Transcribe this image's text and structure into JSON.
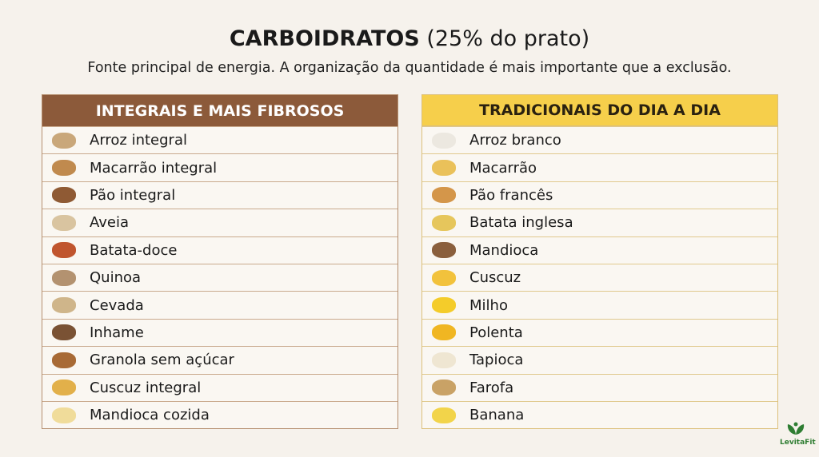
{
  "header": {
    "title_bold": "CARBOIDRATOS",
    "title_rest": " (25% do prato)",
    "subtitle": "Fonte principal de energia. A organização da quantidade é mais importante que a exclusão."
  },
  "left": {
    "heading": "INTEGRAIS E MAIS FIBROSOS",
    "color": "#8c5a3a",
    "items": [
      {
        "label": "Arroz integral",
        "icon": "brown-rice-icon",
        "color": "#c9a77a"
      },
      {
        "label": "Macarrão integral",
        "icon": "whole-pasta-icon",
        "color": "#c08a4e"
      },
      {
        "label": "Pão integral",
        "icon": "whole-bread-icon",
        "color": "#8f5a34"
      },
      {
        "label": "Aveia",
        "icon": "oats-bowl-icon",
        "color": "#d9c4a0"
      },
      {
        "label": "Batata-doce",
        "icon": "sweet-potato-icon",
        "color": "#c0552e"
      },
      {
        "label": "Quinoa",
        "icon": "quinoa-icon",
        "color": "#b39270"
      },
      {
        "label": "Cevada",
        "icon": "barley-icon",
        "color": "#cfb58a"
      },
      {
        "label": "Inhame",
        "icon": "yam-icon",
        "color": "#7a5234"
      },
      {
        "label": "Granola sem açúcar",
        "icon": "granola-icon",
        "color": "#a86a35"
      },
      {
        "label": "Cuscuz integral",
        "icon": "couscous-icon",
        "color": "#e2b04a"
      },
      {
        "label": "Mandioca cozida",
        "icon": "cassava-icon",
        "color": "#f0dc9a"
      }
    ]
  },
  "right": {
    "heading": "TRADICIONAIS DO DIA A DIA",
    "color": "#f6cf4b",
    "items": [
      {
        "label": "Arroz branco",
        "icon": "white-rice-icon",
        "color": "#ece8e0"
      },
      {
        "label": "Macarrão",
        "icon": "pasta-icon",
        "color": "#eac15a"
      },
      {
        "label": "Pão francês",
        "icon": "french-bread-icon",
        "color": "#d4964a"
      },
      {
        "label": "Batata inglesa",
        "icon": "potato-icon",
        "color": "#e6c65c"
      },
      {
        "label": "Mandioca",
        "icon": "cassava-root-icon",
        "color": "#8a5f3d"
      },
      {
        "label": "Cuscuz",
        "icon": "cuscuz-icon",
        "color": "#f2c23c"
      },
      {
        "label": "Milho",
        "icon": "corn-icon",
        "color": "#f4cc2a"
      },
      {
        "label": "Polenta",
        "icon": "polenta-icon",
        "color": "#f0b622"
      },
      {
        "label": "Tapioca",
        "icon": "tapioca-icon",
        "color": "#efe6d2"
      },
      {
        "label": "Farofa",
        "icon": "farofa-icon",
        "color": "#c9a266"
      },
      {
        "label": "Banana",
        "icon": "banana-icon",
        "color": "#f2d44a"
      }
    ]
  },
  "logo": {
    "text": "LevitaFit",
    "color": "#2e7d32"
  }
}
